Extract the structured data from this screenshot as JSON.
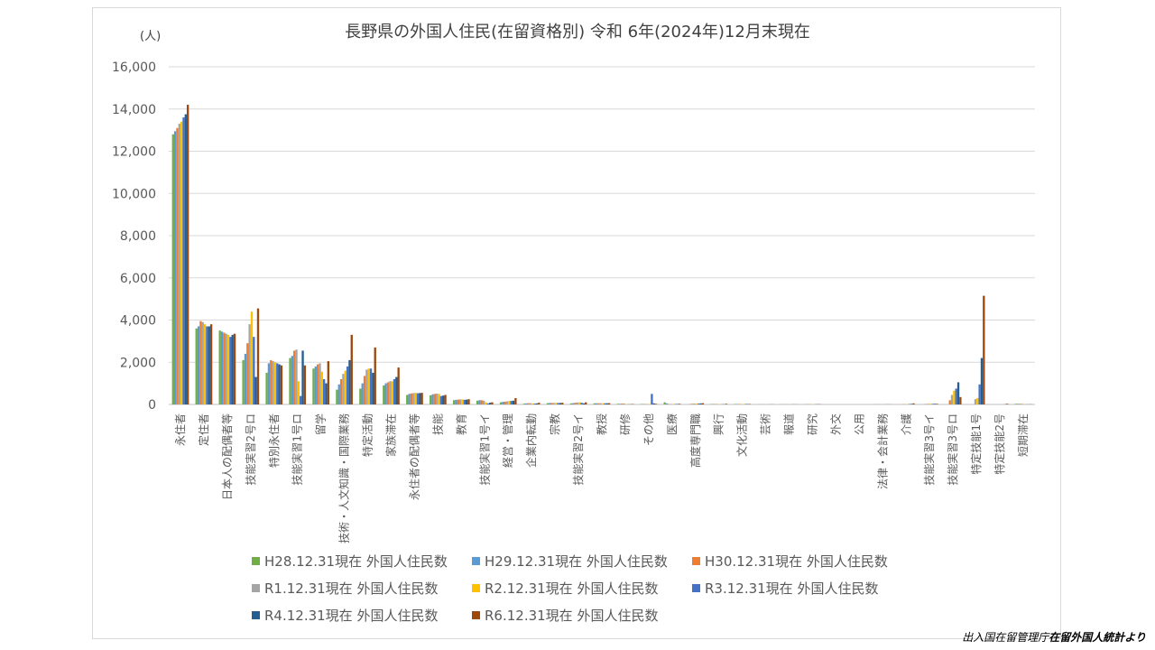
{
  "chart_data": {
    "type": "bar",
    "title": "長野県の外国人住民(在留資格別) 令和 6年(2024年)12月末現在",
    "unit_label": "(人)",
    "ylim": [
      0,
      16000
    ],
    "yticks": [
      "0",
      "2,000",
      "4,000",
      "6,000",
      "8,000",
      "10,000",
      "12,000",
      "14,000",
      "16,000"
    ],
    "ytick_values": [
      0,
      2000,
      4000,
      6000,
      8000,
      10000,
      12000,
      14000,
      16000
    ],
    "grid": true,
    "legend_position": "bottom",
    "categories": [
      "永住者",
      "定住者",
      "日本人の配偶者等",
      "技能実習2号ロ",
      "特別永住者",
      "技能実習1号ロ",
      "留学",
      "技術・人文知識・国際業務",
      "特定活動",
      "家族滞在",
      "永住者の配偶者等",
      "技能",
      "教育",
      "技能実習1号イ",
      "経営・管理",
      "企業内転勤",
      "宗教",
      "技能実習2号イ",
      "教授",
      "研修",
      "その他",
      "医療",
      "高度専門職",
      "興行",
      "文化活動",
      "芸術",
      "報道",
      "研究",
      "外交",
      "公用",
      "法律・会計業務",
      "介護",
      "技能実習3号イ",
      "技能実習3号ロ",
      "特定技能1号",
      "特定技能2号",
      "短期滞在"
    ],
    "series": [
      {
        "name": "H28.12.31現在 外国人住民数",
        "color": "#70ad47",
        "values": [
          12800,
          3600,
          3500,
          2100,
          1500,
          2200,
          1700,
          700,
          750,
          900,
          450,
          430,
          200,
          180,
          100,
          40,
          60,
          50,
          50,
          30,
          20,
          100,
          0,
          20,
          20,
          5,
          5,
          10,
          0,
          0,
          5,
          0,
          0,
          0,
          0,
          0,
          30
        ]
      },
      {
        "name": "H29.12.31現在 外国人住民数",
        "color": "#5b9bd5",
        "values": [
          12950,
          3700,
          3450,
          2400,
          1950,
          2300,
          1800,
          950,
          1000,
          1000,
          500,
          480,
          220,
          200,
          120,
          50,
          70,
          60,
          55,
          30,
          20,
          50,
          20,
          20,
          20,
          5,
          5,
          10,
          0,
          0,
          5,
          0,
          10,
          0,
          0,
          0,
          30
        ]
      },
      {
        "name": "H30.12.31現在 外国人住民数",
        "color": "#ed7d31",
        "values": [
          13100,
          3950,
          3400,
          2900,
          2100,
          2550,
          1900,
          1200,
          1350,
          1050,
          520,
          500,
          230,
          200,
          130,
          60,
          70,
          80,
          55,
          40,
          20,
          20,
          30,
          20,
          20,
          5,
          5,
          10,
          0,
          0,
          5,
          10,
          20,
          200,
          0,
          0,
          30
        ]
      },
      {
        "name": "R1.12.31現在 外国人住民数",
        "color": "#a5a5a5",
        "values": [
          13300,
          3900,
          3350,
          3800,
          2050,
          2600,
          1950,
          1450,
          1650,
          1100,
          540,
          510,
          240,
          180,
          150,
          60,
          70,
          90,
          55,
          40,
          20,
          20,
          40,
          20,
          20,
          5,
          5,
          10,
          0,
          0,
          5,
          10,
          30,
          450,
          250,
          0,
          30
        ]
      },
      {
        "name": "R2.12.31現在 外国人住民数",
        "color": "#ffc000",
        "values": [
          13400,
          3800,
          3300,
          4400,
          2000,
          1100,
          1550,
          1600,
          1700,
          1100,
          550,
          500,
          240,
          100,
          160,
          50,
          70,
          100,
          55,
          20,
          20,
          20,
          40,
          10,
          20,
          5,
          5,
          10,
          0,
          0,
          5,
          15,
          30,
          650,
          300,
          0,
          10
        ]
      },
      {
        "name": "R3.12.31現在 外国人住民数",
        "color": "#4472c4",
        "values": [
          13600,
          3700,
          3200,
          3200,
          1950,
          400,
          1200,
          1800,
          1700,
          1200,
          530,
          400,
          220,
          50,
          170,
          40,
          70,
          80,
          55,
          10,
          500,
          20,
          40,
          10,
          20,
          5,
          5,
          10,
          0,
          0,
          5,
          20,
          30,
          750,
          950,
          0,
          5
        ]
      },
      {
        "name": "R4.12.31現在 外国人住民数",
        "color": "#255e91",
        "values": [
          13750,
          3700,
          3300,
          1300,
          1900,
          2550,
          1000,
          2100,
          1500,
          1300,
          540,
          420,
          230,
          80,
          180,
          50,
          70,
          50,
          55,
          10,
          50,
          20,
          50,
          10,
          20,
          5,
          5,
          10,
          0,
          0,
          5,
          25,
          30,
          1050,
          2200,
          10,
          5
        ]
      },
      {
        "name": "R6.12.31現在 外国人住民数",
        "color": "#9e480e",
        "values": [
          14200,
          3800,
          3350,
          4550,
          1850,
          1850,
          2050,
          3300,
          2700,
          1750,
          550,
          450,
          250,
          100,
          300,
          80,
          80,
          100,
          60,
          20,
          30,
          30,
          60,
          30,
          20,
          5,
          5,
          10,
          0,
          0,
          5,
          50,
          30,
          350,
          5150,
          30,
          10
        ]
      }
    ]
  },
  "source_prefix": "出入国在留管理庁",
  "source_suffix": "在留外国人統計より"
}
